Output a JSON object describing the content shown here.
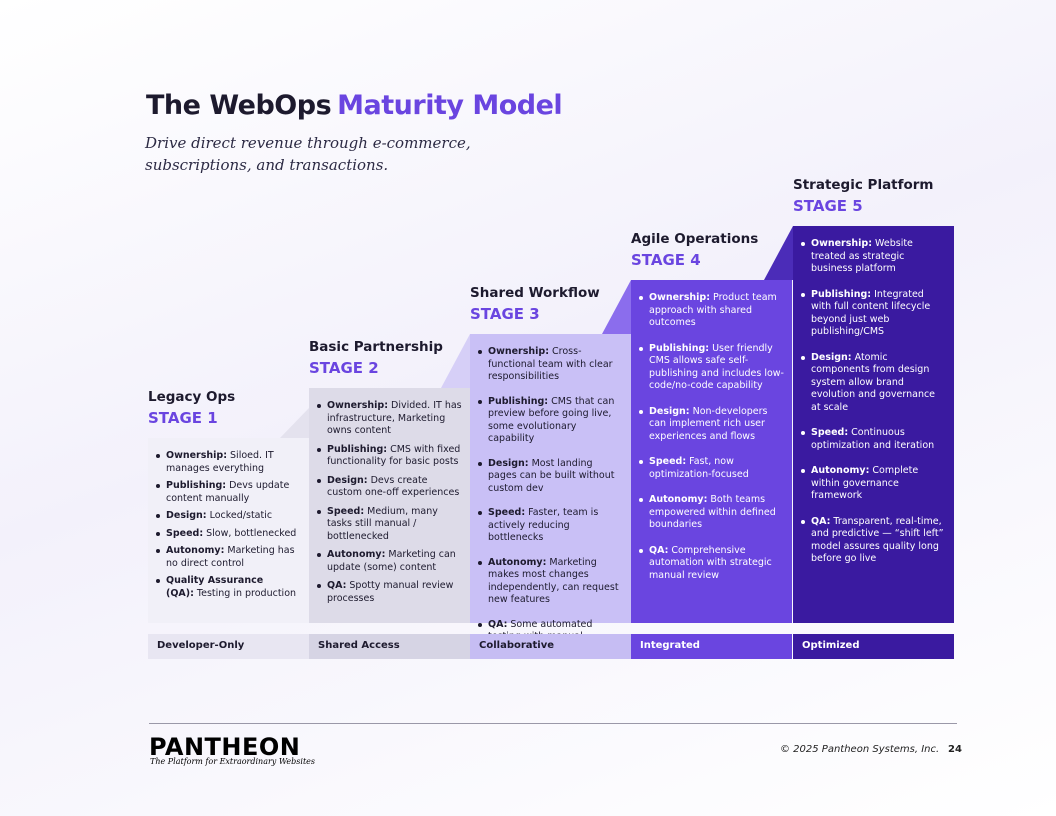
{
  "header": {
    "title_part1": "The WebOps",
    "title_part2": "Maturity Model",
    "subtitle_lines": [
      "Drive direct revenue through e-commerce,",
      "subscriptions, and transactions."
    ]
  },
  "stages": [
    {
      "name": "Legacy Ops",
      "stage": "STAGE 1",
      "band": "Developer-Only",
      "bullets": [
        {
          "label": "Ownership:",
          "text": "Siloed. IT manages everything"
        },
        {
          "label": "Publishing:",
          "text": "Devs update content manually"
        },
        {
          "label": "Design:",
          "text": "Locked/static"
        },
        {
          "label": "Speed:",
          "text": "Slow, bottlenecked"
        },
        {
          "label": "Autonomy:",
          "text": "Marketing has no direct control"
        },
        {
          "label": "Quality Assurance (QA):",
          "text": "Testing in production"
        }
      ]
    },
    {
      "name": "Basic Partnership",
      "stage": "STAGE 2",
      "band": "Shared Access",
      "bullets": [
        {
          "label": "Ownership:",
          "text": "Divided. IT has infrastructure, Marketing owns content"
        },
        {
          "label": "Publishing:",
          "text": "CMS with fixed functionality for basic posts"
        },
        {
          "label": "Design:",
          "text": "Devs create custom one-off experiences"
        },
        {
          "label": "Speed:",
          "text": "Medium, many tasks still manual / bottlenecked"
        },
        {
          "label": "Autonomy:",
          "text": "Marketing can update (some) content"
        },
        {
          "label": "QA:",
          "text": "Spotty manual review processes"
        }
      ]
    },
    {
      "name": "Shared Workflow",
      "stage": "STAGE 3",
      "band": "Collaborative",
      "bullets": [
        {
          "label": "Ownership:",
          "text": "Cross-functional team with clear responsibilities"
        },
        {
          "label": "Publishing:",
          "text": "CMS that can preview before going live, some evolutionary capability"
        },
        {
          "label": "Design:",
          "text": "Most landing pages can be built without custom dev"
        },
        {
          "label": "Speed:",
          "text": "Faster, team is actively reducing bottlenecks"
        },
        {
          "label": "Autonomy:",
          "text": "Marketing makes most changes independently, can request new features"
        },
        {
          "label": "QA:",
          "text": "Some automated testing with manual oversight"
        }
      ]
    },
    {
      "name": "Agile Operations",
      "stage": "STAGE 4",
      "band": "Integrated",
      "bullets": [
        {
          "label": "Ownership:",
          "text": "Product team approach with shared outcomes"
        },
        {
          "label": "Publishing:",
          "text": "User friendly CMS allows safe self-publishing and includes low-code/no-code capability"
        },
        {
          "label": "Design:",
          "text": "Non-developers can implement rich user experiences and flows"
        },
        {
          "label": "Speed:",
          "text": "Fast, now optimization-focused"
        },
        {
          "label": "Autonomy:",
          "text": "Both teams empowered within defined boundaries"
        },
        {
          "label": "QA:",
          "text": "Comprehensive automation with strategic manual review"
        }
      ]
    },
    {
      "name": "Strategic Platform",
      "stage": "STAGE 5",
      "band": "Optimized",
      "bullets": [
        {
          "label": "Ownership:",
          "text": "Website treated as strategic business platform"
        },
        {
          "label": "Publishing:",
          "text": "Integrated with full content lifecycle beyond just web publishing/CMS"
        },
        {
          "label": "Design:",
          "text": "Atomic components from design system allow brand evolution and governance at scale"
        },
        {
          "label": "Speed:",
          "text": "Continuous optimization and iteration"
        },
        {
          "label": "Autonomy:",
          "text": "Complete within governance framework"
        },
        {
          "label": "QA:",
          "text": "Transparent, real-time, and predictive — “shift left” model assures quality long before go live"
        }
      ]
    }
  ],
  "footer": {
    "logo": "PANTHEON",
    "tagline": "The Platform for Extraordinary Websites",
    "copyright": "© 2025 Pantheon Systems, Inc.",
    "page": "24"
  }
}
